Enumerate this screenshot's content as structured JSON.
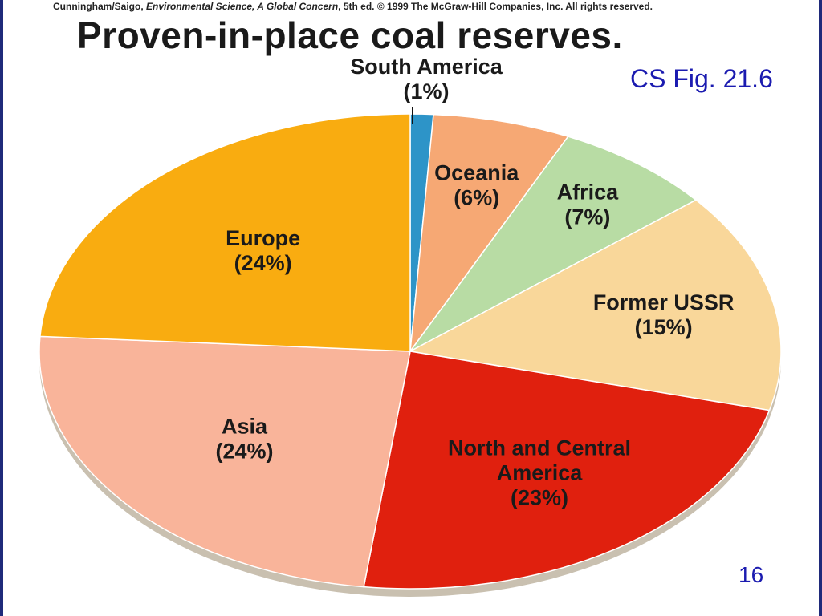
{
  "credit": {
    "authors": "Cunningham/Saigo, ",
    "book": "Environmental Science, A Global Concern",
    "rest": ", 5th ed. © 1999 The McGraw-Hill Companies, Inc. All rights reserved."
  },
  "figure_ref": "CS Fig. 21.6",
  "page_number": "16",
  "colors": {
    "south_america": "#2d94c8",
    "oceania": "#f6a874",
    "africa": "#b8dca4",
    "former_ussr": "#f9d79a",
    "north_central_america": "#e0200e",
    "asia": "#f9b49a",
    "europe": "#f9ac10"
  },
  "chart_data": {
    "type": "pie",
    "title": "Proven-in-place coal reserves.",
    "slices": [
      {
        "name": "South America",
        "value": 1,
        "label": "(1%)",
        "color": "#2d94c8"
      },
      {
        "name": "Oceania",
        "value": 6,
        "label": "(6%)",
        "color": "#f6a874"
      },
      {
        "name": "Africa",
        "value": 7,
        "label": "(7%)",
        "color": "#b8dca4"
      },
      {
        "name": "Former USSR",
        "value": 15,
        "label": "(15%)",
        "color": "#f9d79a"
      },
      {
        "name": "North and Central America",
        "value": 23,
        "label": "(23%)",
        "color": "#e0200e"
      },
      {
        "name": "Asia",
        "value": 24,
        "label": "(24%)",
        "color": "#f9b49a"
      },
      {
        "name": "Europe",
        "value": 24,
        "label": "(24%)",
        "color": "#f9ac10"
      }
    ]
  }
}
